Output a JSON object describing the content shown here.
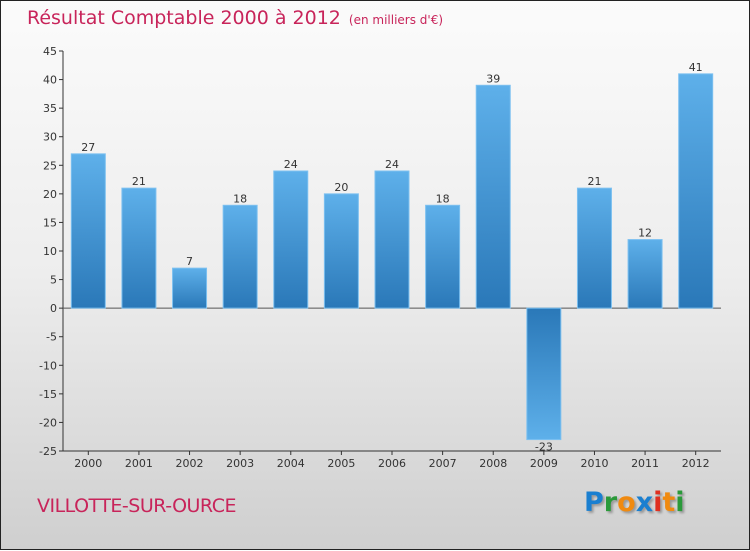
{
  "chart_data": {
    "type": "bar",
    "title": "Résultat Comptable 2000 à 2012",
    "subtitle": "(en milliers d'€)",
    "categories": [
      "2000",
      "2001",
      "2002",
      "2003",
      "2004",
      "2005",
      "2006",
      "2007",
      "2008",
      "2009",
      "2010",
      "2011",
      "2012"
    ],
    "values": [
      27,
      21,
      7,
      18,
      24,
      20,
      24,
      18,
      39,
      -23,
      21,
      12,
      41
    ],
    "ylim": [
      -25,
      45
    ],
    "yticks": [
      45,
      40,
      35,
      30,
      25,
      20,
      15,
      10,
      5,
      0,
      -5,
      -10,
      -15,
      -20,
      -25
    ],
    "grid": false,
    "bar_color_light": "#5eb0ea",
    "bar_color_dark": "#2a78b8"
  },
  "commune": "VILLOTTE-SUR-OURCE",
  "logo": "Proxiti"
}
